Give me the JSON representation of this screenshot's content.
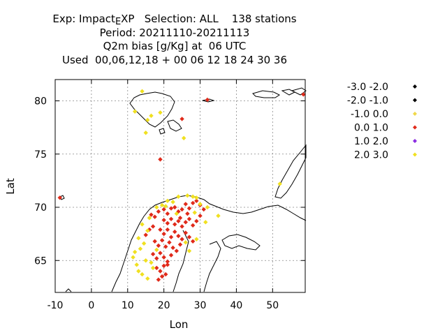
{
  "title_lines": {
    "line1_pre": "Exp: Impact",
    "line1_sub": "E",
    "line1_post": "XP   Selection: ALL    138 stations",
    "line2": "Period: 20211110-20211113",
    "line3": "Q2m bias [g/Kg] at  06 UTC",
    "line4": "Used  00,06,12,18 + 00 06 12 18 24 30 36"
  },
  "chart_data": {
    "type": "scatter",
    "xlabel": "Lon",
    "ylabel": "Lat",
    "xlim": [
      -10,
      59
    ],
    "ylim": [
      62,
      82
    ],
    "xticks": [
      -10,
      0,
      10,
      20,
      30,
      40,
      50
    ],
    "yticks": [
      65,
      70,
      75,
      80
    ],
    "grid": true,
    "legend_position": "right",
    "legend": [
      {
        "label": "-3.0 -2.0",
        "color": "#000000"
      },
      {
        "label": "-2.0 -1.0",
        "color": "#000000"
      },
      {
        "label": "-1.0 0.0",
        "color": "#f0d848"
      },
      {
        "label": "0.0 1.0",
        "color": "#e02a1a"
      },
      {
        "label": "1.0 2.0",
        "color": "#8a2be2"
      },
      {
        "label": "2.0 3.0",
        "color": "#f0e020"
      }
    ],
    "series": [
      {
        "color": "#e02a1a",
        "points": [
          [
            -8.7,
            70.9
          ],
          [
            19.0,
            74.5
          ],
          [
            32.0,
            80.1
          ],
          [
            25.0,
            78.3
          ],
          [
            58.5,
            80.6
          ],
          [
            16.5,
            69.3
          ],
          [
            17.5,
            69.1
          ],
          [
            18.5,
            69.6
          ],
          [
            20.0,
            69.8
          ],
          [
            21.0,
            69.4
          ],
          [
            22.0,
            69.9
          ],
          [
            23.0,
            70.0
          ],
          [
            24.0,
            69.6
          ],
          [
            25.0,
            69.8
          ],
          [
            26.0,
            70.3
          ],
          [
            27.0,
            69.9
          ],
          [
            28.0,
            70.4
          ],
          [
            29.0,
            70.6
          ],
          [
            30.0,
            70.2
          ],
          [
            31.0,
            69.8
          ],
          [
            20.0,
            68.8
          ],
          [
            21.0,
            68.5
          ],
          [
            22.0,
            68.9
          ],
          [
            23.0,
            68.4
          ],
          [
            24.0,
            68.7
          ],
          [
            25.0,
            68.2
          ],
          [
            26.0,
            68.6
          ],
          [
            27.0,
            68.9
          ],
          [
            28.0,
            68.3
          ],
          [
            29.0,
            68.7
          ],
          [
            30.0,
            69.2
          ],
          [
            19.0,
            67.9
          ],
          [
            20.0,
            67.5
          ],
          [
            21.0,
            67.9
          ],
          [
            22.0,
            67.2
          ],
          [
            23.0,
            67.7
          ],
          [
            24.0,
            67.3
          ],
          [
            25.0,
            67.0
          ],
          [
            26.0,
            67.6
          ],
          [
            27.0,
            67.2
          ],
          [
            28.0,
            66.8
          ],
          [
            17.5,
            66.8
          ],
          [
            18.5,
            66.4
          ],
          [
            19.5,
            66.9
          ],
          [
            20.5,
            66.3
          ],
          [
            21.5,
            66.7
          ],
          [
            22.5,
            66.2
          ],
          [
            23.5,
            65.9
          ],
          [
            24.5,
            66.5
          ],
          [
            17.0,
            65.6
          ],
          [
            18.0,
            65.2
          ],
          [
            19.0,
            65.7
          ],
          [
            20.0,
            65.3
          ],
          [
            21.0,
            64.9
          ],
          [
            22.0,
            65.5
          ],
          [
            18.0,
            64.3
          ],
          [
            19.0,
            64.0
          ],
          [
            20.0,
            64.5
          ],
          [
            21.0,
            64.6
          ],
          [
            19.5,
            63.5
          ],
          [
            18.5,
            63.2
          ],
          [
            20.5,
            63.7
          ],
          [
            16.0,
            67.9
          ],
          [
            17.0,
            68.2
          ],
          [
            15.0,
            67.4
          ],
          [
            24.5,
            69.0
          ],
          [
            26.5,
            69.4
          ]
        ]
      },
      {
        "color": "#f0e020",
        "points": [
          [
            14.0,
            80.9
          ],
          [
            12.0,
            79.0
          ],
          [
            15.5,
            78.2
          ],
          [
            16.5,
            78.6
          ],
          [
            15.0,
            77.0
          ],
          [
            25.5,
            76.5
          ],
          [
            52.0,
            72.2
          ],
          [
            19.0,
            78.9
          ],
          [
            22.5,
            70.5
          ],
          [
            24.0,
            71.0
          ],
          [
            26.5,
            71.1
          ],
          [
            28.0,
            71.0
          ],
          [
            30.0,
            70.3
          ],
          [
            32.0,
            70.0
          ],
          [
            35.0,
            69.2
          ],
          [
            31.5,
            68.6
          ],
          [
            29.0,
            67.0
          ],
          [
            27.0,
            65.9
          ],
          [
            14.0,
            68.4
          ],
          [
            13.0,
            67.1
          ],
          [
            13.5,
            66.1
          ],
          [
            12.0,
            65.8
          ],
          [
            11.5,
            65.3
          ],
          [
            12.5,
            64.6
          ],
          [
            13.0,
            64.0
          ],
          [
            14.0,
            63.7
          ],
          [
            15.5,
            63.3
          ],
          [
            16.5,
            64.8
          ],
          [
            15.0,
            65.0
          ],
          [
            14.5,
            66.6
          ],
          [
            15.5,
            67.8
          ],
          [
            16.0,
            69.0
          ],
          [
            18.0,
            70.0
          ],
          [
            19.5,
            70.2
          ],
          [
            21.0,
            70.6
          ],
          [
            23.5,
            69.4
          ],
          [
            28.5,
            69.5
          ],
          [
            26.0,
            66.7
          ],
          [
            18.0,
            66.0
          ],
          [
            17.0,
            64.3
          ],
          [
            20.5,
            70.1
          ],
          [
            29.0,
            70.9
          ]
        ]
      },
      {
        "color": "#000000",
        "points": []
      }
    ]
  }
}
